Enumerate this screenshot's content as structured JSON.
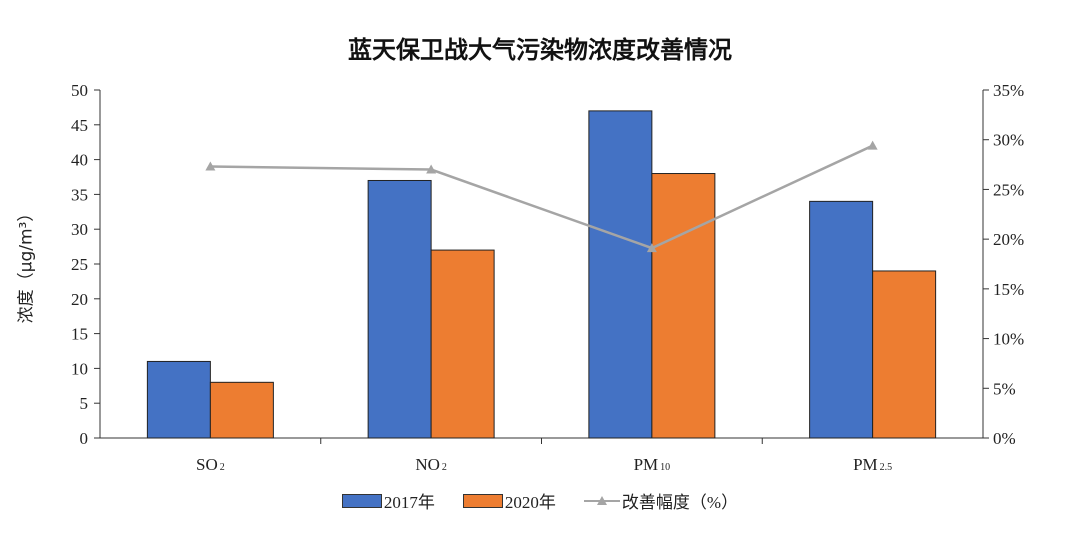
{
  "chart_data": {
    "type": "bar",
    "title": "蓝天保卫战大气污染物浓度改善情况",
    "ylabel": "浓度（μg/m³）",
    "categories": [
      {
        "base": "SO",
        "sub": "2"
      },
      {
        "base": "NO",
        "sub": "2"
      },
      {
        "base": "PM",
        "sub": "10"
      },
      {
        "base": "PM",
        "sub": "2.5"
      }
    ],
    "series": [
      {
        "name": "2017年",
        "type": "bar",
        "axis": "left",
        "color": "#4472C4",
        "values": [
          11,
          37,
          47,
          34
        ]
      },
      {
        "name": "2020年",
        "type": "bar",
        "axis": "left",
        "color": "#ED7D31",
        "values": [
          8,
          27,
          38,
          24
        ]
      },
      {
        "name": "改善幅度（%）",
        "type": "line",
        "axis": "right",
        "color": "#A5A5A5",
        "marker": "triangle",
        "values": [
          27.3,
          27.0,
          19.1,
          29.4
        ]
      }
    ],
    "ylim": [
      0,
      50
    ],
    "yticks": [
      "0",
      "5",
      "10",
      "15",
      "20",
      "25",
      "30",
      "35",
      "40",
      "45",
      "50"
    ],
    "y2lim": [
      0,
      35
    ],
    "y2ticks": [
      "0%",
      "5%",
      "10%",
      "15%",
      "20%",
      "25%",
      "30%",
      "35%"
    ],
    "grid": false,
    "legend": "bottom"
  }
}
